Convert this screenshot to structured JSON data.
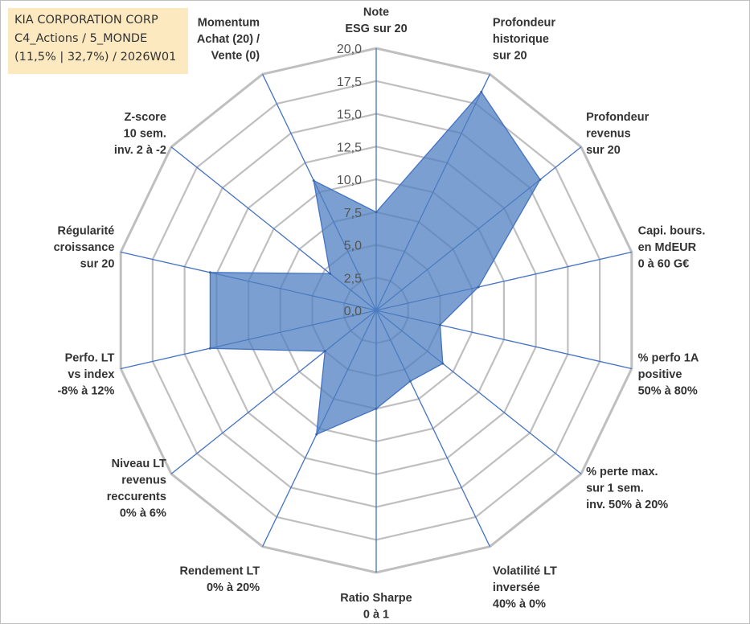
{
  "header": {
    "company": "KIA CORPORATION CORP",
    "category": "C4_Actions / 5_MONDE",
    "stats": "(11,5% | 32,7%) / 2026W01"
  },
  "chart_data": {
    "type": "radar",
    "title": "KIA CORPORATION CORP",
    "rmin": 0,
    "rmax": 20,
    "ticks": [
      "0,0",
      "2,5",
      "5,0",
      "7,5",
      "10,0",
      "12,5",
      "15,0",
      "17,5",
      "20,0"
    ],
    "tick_values": [
      0,
      2.5,
      5,
      7.5,
      10,
      12.5,
      15,
      17.5,
      20
    ],
    "axes": [
      {
        "lines": [
          "Note",
          "ESG sur 20"
        ]
      },
      {
        "lines": [
          "Profondeur",
          "historique",
          "sur 20"
        ]
      },
      {
        "lines": [
          "Profondeur",
          "revenus",
          "sur 20"
        ]
      },
      {
        "lines": [
          "Capi. bours.",
          "en MdEUR",
          "0 à 60 G€"
        ]
      },
      {
        "lines": [
          "% perfo 1A",
          "positive",
          "50% à 80%"
        ]
      },
      {
        "lines": [
          "% perte max.",
          "sur 1 sem.",
          "inv. 50% à 20%"
        ]
      },
      {
        "lines": [
          "Volatilité LT",
          "inversée",
          "40% à 0%"
        ]
      },
      {
        "lines": [
          "Ratio Sharpe",
          "0 à 1"
        ]
      },
      {
        "lines": [
          "Rendement LT",
          "0% à 20%"
        ]
      },
      {
        "lines": [
          "Niveau LT",
          "revenus",
          "reccurents",
          "0% à 6%"
        ]
      },
      {
        "lines": [
          "Perfo. LT",
          "vs index",
          "-8% à 12%"
        ]
      },
      {
        "lines": [
          "Régularité",
          "croissance",
          "sur 20"
        ]
      },
      {
        "lines": [
          "Z-score",
          "10 sem.",
          "inv. 2 à -2"
        ]
      },
      {
        "lines": [
          "Momentum",
          "Achat (20) /",
          "Vente (0)"
        ]
      }
    ],
    "series": [
      {
        "name": "KIA CORPORATION CORP",
        "color": "#4f7fc0",
        "values": [
          7.5,
          18.5,
          16.0,
          8.0,
          5.0,
          6.5,
          6.0,
          7.5,
          10.5,
          5.0,
          13.0,
          13.0,
          4.5,
          11.0
        ]
      }
    ],
    "grid_color": "#bfbfbf",
    "spoke_color": "#4472c4"
  }
}
